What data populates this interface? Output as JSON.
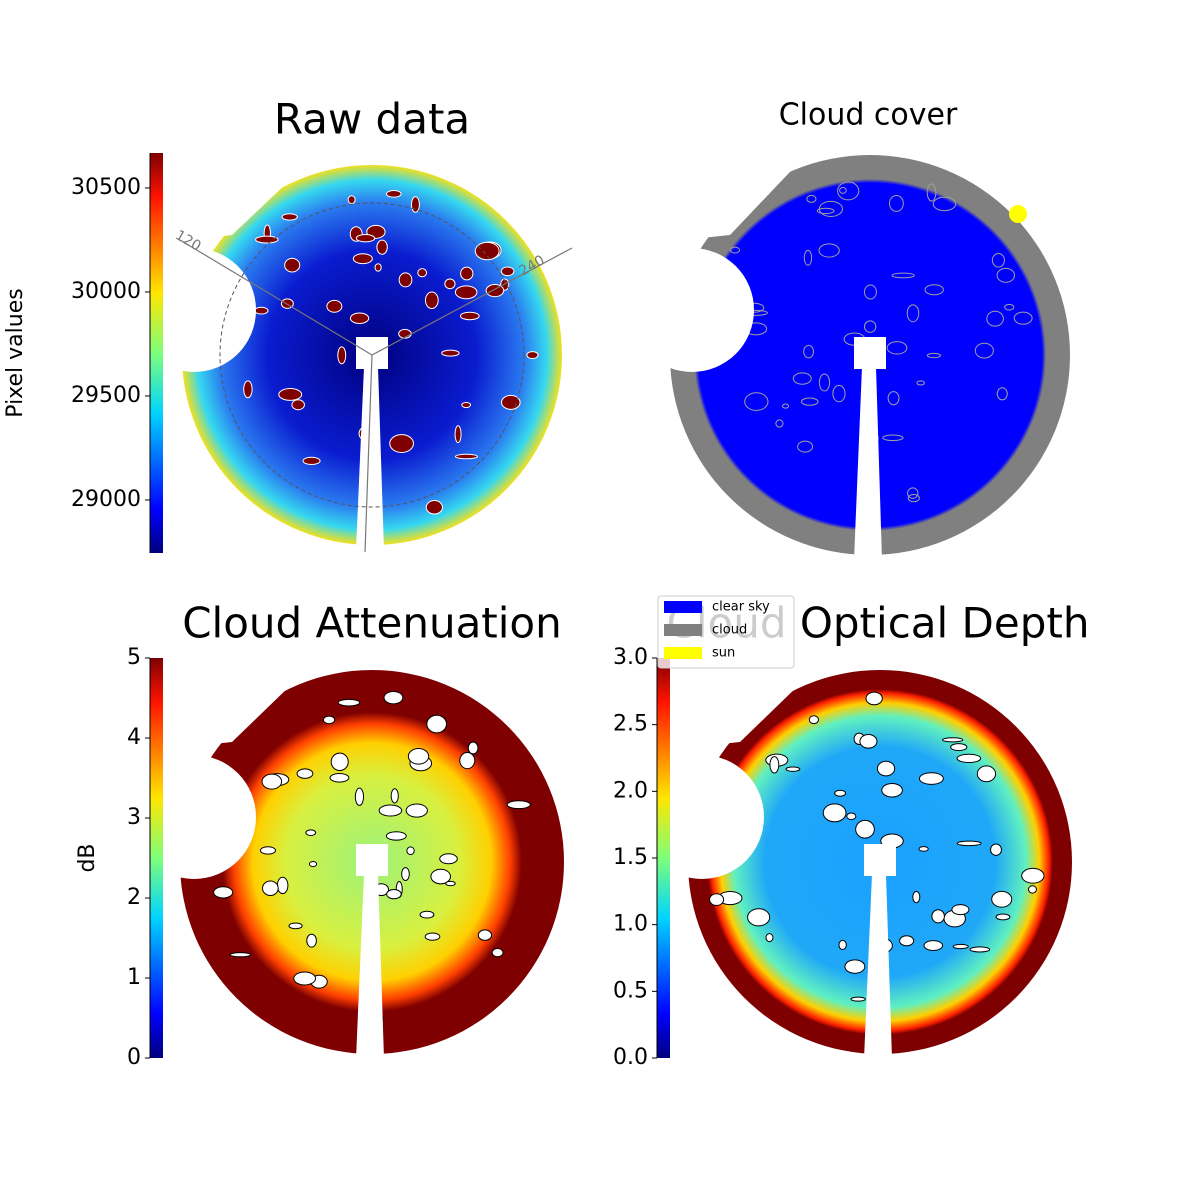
{
  "chart_data": [
    {
      "type": "image",
      "title": "Raw data",
      "annotations": [
        "120",
        "240"
      ],
      "colorbar": {
        "label": "Pixel values",
        "ylim": [
          28745,
          30668
        ],
        "yticks": [
          29000,
          29500,
          30000,
          30500
        ]
      }
    },
    {
      "type": "categorical-image",
      "title": "Cloud cover",
      "legend": {
        "entries": [
          {
            "name": "clear sky",
            "color": "#0000ff"
          },
          {
            "name": "cloud",
            "color": "#808080"
          },
          {
            "name": "sun",
            "color": "#ffff00"
          }
        ]
      }
    },
    {
      "type": "image",
      "title": "Cloud Attenuation",
      "colorbar": {
        "label": "dB",
        "ylim": [
          0,
          5
        ],
        "yticks": [
          0,
          1,
          2,
          3,
          4,
          5
        ]
      }
    },
    {
      "type": "image",
      "title": "Cloud Optical Depth",
      "colorbar": {
        "ylim": [
          0,
          3
        ],
        "yticks": [
          {
            "value": 0,
            "label": "0.0"
          },
          {
            "value": 0.5,
            "label": "0.5"
          },
          {
            "value": 1,
            "label": "1.0"
          },
          {
            "value": 1.5,
            "label": "1.5"
          },
          {
            "value": 2,
            "label": "2.0"
          },
          {
            "value": 2.5,
            "label": "2.5"
          },
          {
            "value": 3,
            "label": "3.0"
          }
        ]
      }
    }
  ]
}
